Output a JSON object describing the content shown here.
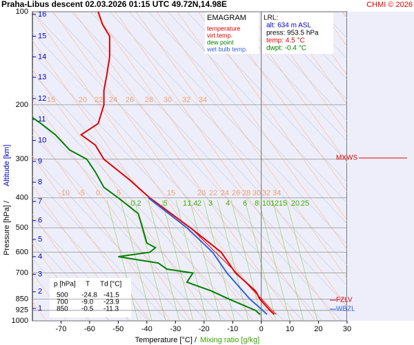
{
  "chart_data": {
    "type": "line",
    "title": "Praha-Libus   descent   02.03.2026 01:15 UTC  49.72N,14.98E",
    "credit": "CHMI © 2026",
    "x_label": "Temperature [°C]  /",
    "x_label2": "Mixing ratio [g/kg]",
    "y_label": "Pressure [hPa]  /",
    "y_label2": "Altitude [km]",
    "y_log": true,
    "xlim": [
      -80,
      30
    ],
    "xticks": [
      -70,
      -60,
      -50,
      -40,
      -30,
      -20,
      -10,
      0,
      10,
      20,
      30
    ],
    "ylim": [
      100,
      1000
    ],
    "yticks": [
      100,
      200,
      300,
      400,
      500,
      600,
      700,
      850,
      925,
      1000
    ],
    "grid": true,
    "altitude_km": [
      "1",
      "2",
      "3",
      "4",
      "5",
      "6",
      "7",
      "8",
      "9",
      "10",
      "11",
      "12",
      "13",
      "14",
      "15",
      "16"
    ],
    "altitude_pressure": [
      912,
      805,
      707,
      620,
      545,
      474,
      411,
      356,
      305,
      261,
      223,
      191,
      163,
      140,
      120,
      102
    ],
    "legend_title": "EMAGRAM",
    "series": [
      {
        "name": "temperature",
        "color": "#e00000",
        "x": [
          4.5,
          3,
          -0.5,
          -2,
          -9,
          -14,
          -24.8,
          -39,
          -46,
          -55,
          -58,
          -63,
          -57,
          -55,
          -55,
          -54,
          -53,
          -53,
          -55.5,
          -57
        ],
        "values": [
          953.5,
          925,
          850,
          800,
          700,
          600,
          500,
          400,
          350,
          300,
          270,
          250,
          230,
          200,
          180,
          160,
          140,
          120,
          110,
          100
        ]
      },
      {
        "name": "virt.temp.",
        "color": "#e00000",
        "x": [
          5.3,
          3.7,
          0.1,
          -8.6,
          -24.7,
          -39
        ],
        "values": [
          953.5,
          925,
          850,
          700,
          500,
          400
        ]
      },
      {
        "name": "dew point",
        "color": "#008000",
        "x": [
          -0.4,
          -2,
          -11.3,
          -17.5,
          -26,
          -23.9,
          -33,
          -36,
          -50,
          -39,
          -37,
          -40,
          -41.5,
          -43,
          -50,
          -55,
          -58,
          -61,
          -67,
          -72,
          -77,
          -80
        ],
        "values": [
          953.5,
          925,
          850,
          800,
          750,
          700,
          680,
          650,
          620,
          600,
          580,
          560,
          500,
          450,
          400,
          370,
          330,
          300,
          280,
          250,
          230,
          220
        ]
      },
      {
        "name": "wet bulb temp.",
        "color": "#3060e0",
        "x": [
          2,
          0.5,
          -4,
          -12,
          -17,
          -26,
          -39.5
        ],
        "values": [
          953.5,
          925,
          850,
          700,
          600,
          500,
          400
        ]
      }
    ],
    "lrl": [
      "LRL:",
      "alt: 634 m ASL",
      "press: 953.5 hPa",
      "temp: 4.5 °C",
      "dwpt: -0.4 °C"
    ],
    "table": {
      "header": [
        "p [hPa]",
        "T",
        "Td [°C]"
      ],
      "rows": [
        [
          "500",
          "-24.8",
          "-41.5"
        ],
        [
          "700",
          "-9.0",
          "-23.9"
        ],
        [
          "850",
          "-0.5",
          "-11.3"
        ]
      ]
    },
    "annotations": [
      "MXWS",
      "FZLV",
      "WBZL"
    ],
    "orange_labels_top": [
      "15",
      "20",
      "22",
      "24",
      "26",
      "28",
      "30",
      "32",
      "34"
    ],
    "orange_labels_mid": [
      "-10",
      "-5",
      "0",
      "5",
      "15",
      "20",
      "22",
      "24",
      "26",
      "28",
      "30",
      "32",
      "34"
    ],
    "mixing_labels": [
      "0.2",
      ".5",
      "1",
      "1.4",
      "2",
      "3",
      "4",
      "6",
      "8",
      "10",
      "12",
      "15",
      "20",
      "25"
    ]
  }
}
